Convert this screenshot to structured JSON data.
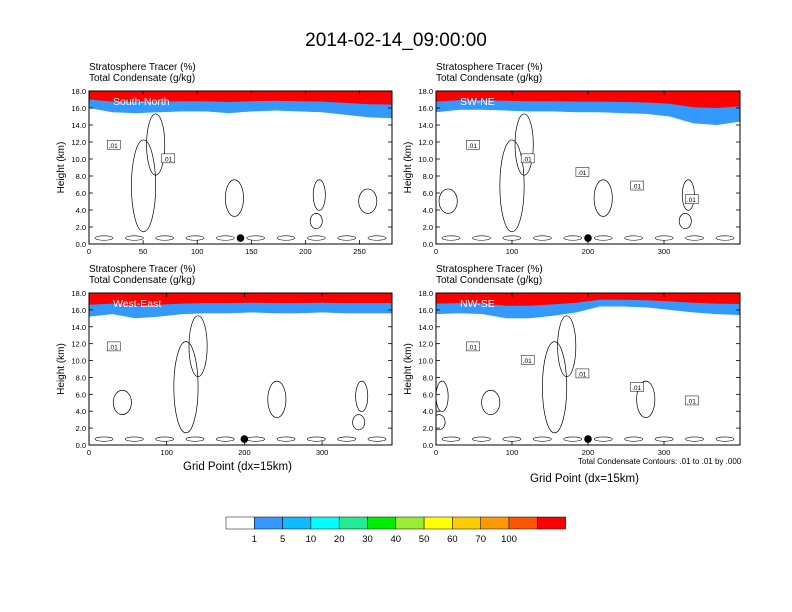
{
  "figure": {
    "title": "2014-02-14_09:00:00",
    "contour_note": "Total Condensate Contours: .01 to .01 by .000"
  },
  "colorbar": {
    "levels": [
      "1",
      "5",
      "10",
      "20",
      "30",
      "40",
      "50",
      "60",
      "70",
      "100"
    ],
    "colors": [
      "#ffffff",
      "#3399ff",
      "#0fbbff",
      "#00ffff",
      "#20ee90",
      "#00ee00",
      "#99ee33",
      "#ffff00",
      "#ffcc00",
      "#ff9900",
      "#ff5500",
      "#ff0000"
    ]
  },
  "chart_data": [
    {
      "type": "heatmap",
      "panel_label": "South-North",
      "header": [
        "Stratosphere Tracer   (%)",
        "Total Condensate   (g/kg)"
      ],
      "ylabel": "Height (km)",
      "xlabel": "",
      "ylim": [
        0,
        18
      ],
      "yticks": [
        "0.0",
        "2.0",
        "4.0",
        "6.0",
        "8.0",
        "10.0",
        "12.0",
        "14.0",
        "16.0",
        "18.0"
      ],
      "xlim": [
        0,
        280
      ],
      "xticks": [
        0,
        50,
        100,
        150,
        200,
        250
      ],
      "marker_x": 140,
      "contour_labels": [
        ".01",
        ".01"
      ],
      "tropopause_km": [
        16.0,
        15.5,
        15.4,
        15.5,
        15.6,
        15.6,
        15.4,
        15.6,
        15.7,
        15.6,
        15.5,
        15.2,
        14.9,
        14.8
      ]
    },
    {
      "type": "heatmap",
      "panel_label": "SW-NE",
      "header": [
        "Stratosphere Tracer   (%)",
        "Total Condensate   (g/kg)"
      ],
      "ylabel": "Height (km)",
      "xlabel": "",
      "ylim": [
        0,
        18
      ],
      "yticks": [
        "0.0",
        "2.0",
        "4.0",
        "6.0",
        "8.0",
        "10.0",
        "12.0",
        "14.0",
        "16.0",
        "18.0"
      ],
      "xlim": [
        0,
        400
      ],
      "xticks": [
        0,
        100,
        200,
        300
      ],
      "marker_x": 200,
      "contour_labels": [
        ".01",
        ".01",
        ".01",
        ".01",
        ".01"
      ],
      "tropopause_km": [
        15.5,
        15.8,
        15.8,
        15.7,
        15.6,
        15.6,
        15.5,
        15.5,
        15.4,
        15.3,
        15.0,
        14.2,
        14.0,
        14.4
      ]
    },
    {
      "type": "heatmap",
      "panel_label": "West-East",
      "header": [
        "Stratosphere Tracer   (%)",
        "Total Condensate   (g/kg)"
      ],
      "ylabel": "Height (km)",
      "xlabel": "Grid Point (dx=15km)",
      "ylim": [
        0,
        18
      ],
      "yticks": [
        "0.0",
        "2.0",
        "4.0",
        "6.0",
        "8.0",
        "10.0",
        "12.0",
        "14.0",
        "16.0",
        "18.0"
      ],
      "xlim": [
        0,
        390
      ],
      "xticks": [
        0,
        100,
        200,
        300
      ],
      "marker_x": 200,
      "contour_labels": [
        ".01"
      ],
      "tropopause_km": [
        15.2,
        15.5,
        15.0,
        15.2,
        15.5,
        15.6,
        15.6,
        15.7,
        15.6,
        15.6,
        15.7,
        15.6,
        15.6,
        15.6
      ]
    },
    {
      "type": "heatmap",
      "panel_label": "NW-SE",
      "header": [
        "Stratosphere Tracer   (%)",
        "Total Condensate   (g/kg)"
      ],
      "ylabel": "Height (km)",
      "xlabel": "Grid Point (dx=15km)",
      "ylim": [
        0,
        18
      ],
      "yticks": [
        "0.0",
        "2.0",
        "4.0",
        "6.0",
        "8.0",
        "10.0",
        "12.0",
        "14.0",
        "16.0",
        "18.0"
      ],
      "xlim": [
        0,
        400
      ],
      "xticks": [
        0,
        100,
        200,
        300
      ],
      "marker_x": 200,
      "contour_labels": [
        ".01",
        ".01",
        ".01",
        ".01",
        ".01"
      ],
      "tropopause_km": [
        15.5,
        15.6,
        15.5,
        15.0,
        15.0,
        15.3,
        15.7,
        16.4,
        16.4,
        16.3,
        16.0,
        15.7,
        15.5,
        15.4
      ]
    }
  ]
}
